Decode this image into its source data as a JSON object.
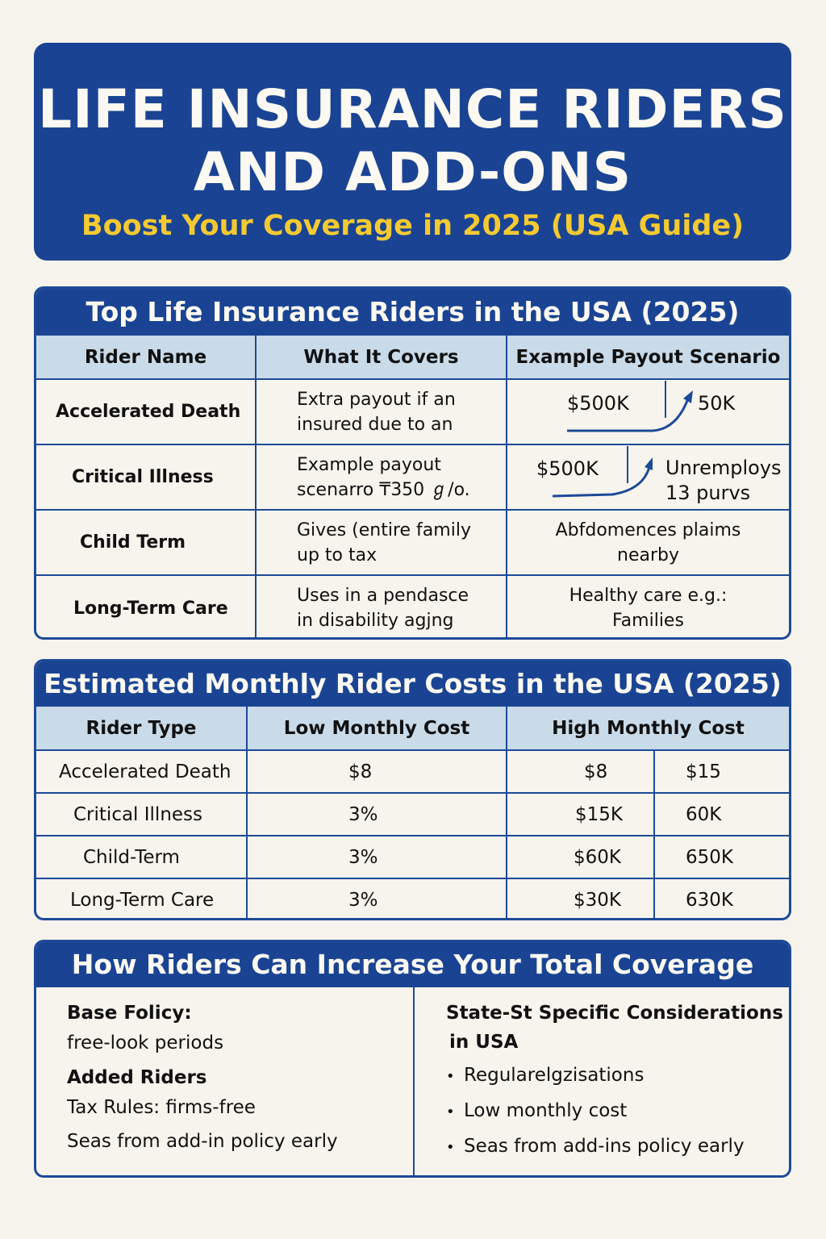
{
  "header": {
    "title_line1": "LIFE INSURANCE RIDERS",
    "title_line2": "AND ADD-ONS",
    "subtitle": "Boost Your Coverage in 2025 (USA Guide)"
  },
  "riders_table": {
    "title": "Top Life Insurance Riders in the USA (2025)",
    "headers": [
      "Rider Name",
      "What It Covers",
      "Example Payout Scenario"
    ],
    "rows": [
      {
        "name": "Accelerated Death",
        "covers_1": "Extra payout if an",
        "covers_2": "insured due to an",
        "ex_a": "$500K",
        "ex_b": "50K"
      },
      {
        "name": "Critical Illness",
        "covers_1": "Example payout",
        "covers_2": "scenarro ₸350 ℊ/o.",
        "ex_a": "$500K",
        "ex_b1": "Unremploys",
        "ex_b2": "13 purvs"
      },
      {
        "name": "Child Term",
        "covers_1": "Gives (entire family",
        "covers_2": "up to tax",
        "ex_1": "Abfdomences plaims",
        "ex_2": "nearby"
      },
      {
        "name": "Long-Term Care",
        "covers_1": "Uses in a pendasce",
        "covers_2": "in disability agjng",
        "ex_1": "Healthy care e.g.:",
        "ex_2": "Families"
      }
    ]
  },
  "costs_table": {
    "title": "Estimated Monthly Rider Costs in the USA (2025)",
    "headers": [
      "Rider Type",
      "Low Monthly Cost",
      "High Monthly Cost"
    ],
    "rows": [
      {
        "type": "Accelerated Death",
        "low": "$8",
        "high_1": "$8",
        "high_2": "$15"
      },
      {
        "type": "Critical Illness",
        "low": "3%",
        "high_1": "$15K",
        "high_2": "60K"
      },
      {
        "type": "Child-Term",
        "low": "3%",
        "high_1": "$60K",
        "high_2": "650K"
      },
      {
        "type": "Long-Term Care",
        "low": "3%",
        "high_1": "$30K",
        "high_2": "630K"
      }
    ]
  },
  "coverage": {
    "title": "How Riders Can Increase Your Total Coverage",
    "left": {
      "label_1": "Base Folicy:",
      "text_1": "free-look periods",
      "label_2": "Added Riders",
      "text_2": "Tax Rules: firms-free",
      "text_3": "Seas from add-in policy early"
    },
    "right": {
      "heading_1": "State-St Specific Considerations",
      "heading_2": "in USA",
      "bullets": [
        "Regularelgzisations",
        "Low monthly cost",
        "Seas from add-ins policy early"
      ]
    }
  },
  "colors": {
    "navy": "#1a4493",
    "gold": "#f4c932",
    "header_cell": "#c9dbe9",
    "background": "#f6f3ec"
  }
}
